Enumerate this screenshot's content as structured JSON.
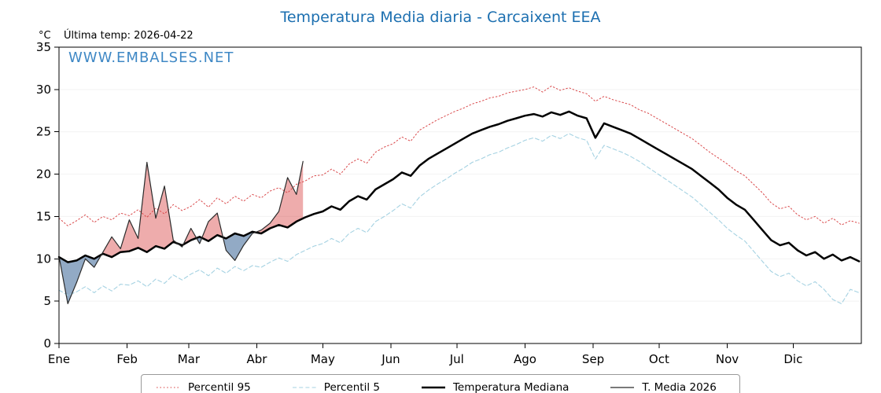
{
  "title": "Temperatura Media diaria - Carcaixent EEA",
  "annotations": {
    "y_unit": "°C",
    "last_temp": "Última temp: 2026-04-22",
    "watermark": "WWW.EMBALSES.NET"
  },
  "colors": {
    "title": "#1c6fb0",
    "watermark": "#3f88c5",
    "p95": "#d9484a",
    "p5": "#a5d2e2",
    "median": "#000000",
    "t2026": "#2b2b2b",
    "fill_above": "rgba(214,57,57,0.42)",
    "fill_below": "rgba(56,100,150,0.55)"
  },
  "chart_data": {
    "type": "line",
    "title": "Temperatura Media diaria - Carcaixent EEA",
    "ylabel": "°C",
    "ylim": [
      0,
      35
    ],
    "yticks": [
      0,
      5,
      10,
      15,
      20,
      25,
      30,
      35
    ],
    "x_domain": [
      1,
      366
    ],
    "month_ticks": {
      "days": [
        1,
        32,
        60,
        91,
        121,
        152,
        182,
        213,
        244,
        274,
        305,
        335
      ],
      "labels": [
        "Ene",
        "Feb",
        "Mar",
        "Abr",
        "May",
        "Jun",
        "Jul",
        "Ago",
        "Sep",
        "Oct",
        "Nov",
        "Dic"
      ]
    },
    "fill": {
      "series": "T. Media 2026",
      "baseline": "Temperatura Mediana",
      "above_color": "rgba(214,57,57,0.42)",
      "below_color": "rgba(56,100,150,0.55)"
    },
    "series": [
      {
        "name": "Percentil 95",
        "color": "#d9484a",
        "width": 1,
        "dash": "dotted",
        "x_start": 1,
        "x_step": 4,
        "values": [
          14.8,
          13.9,
          14.5,
          15.2,
          14.3,
          15.0,
          14.6,
          15.4,
          15.1,
          15.8,
          14.9,
          16.0,
          15.3,
          16.4,
          15.7,
          16.2,
          17.0,
          16.1,
          17.2,
          16.5,
          17.4,
          16.8,
          17.6,
          17.2,
          18.0,
          18.4,
          17.8,
          18.8,
          19.2,
          19.8,
          19.9,
          20.6,
          20.0,
          21.2,
          21.8,
          21.3,
          22.6,
          23.2,
          23.6,
          24.4,
          23.9,
          25.2,
          25.8,
          26.4,
          26.9,
          27.4,
          27.8,
          28.3,
          28.6,
          29.0,
          29.2,
          29.6,
          29.8,
          30.0,
          30.3,
          29.7,
          30.4,
          29.9,
          30.2,
          29.8,
          29.5,
          28.6,
          29.2,
          28.8,
          28.5,
          28.2,
          27.6,
          27.2,
          26.6,
          26.0,
          25.4,
          24.8,
          24.2,
          23.4,
          22.6,
          21.9,
          21.2,
          20.4,
          19.8,
          18.8,
          17.8,
          16.6,
          15.9,
          16.2,
          15.2,
          14.6,
          15.0,
          14.2,
          14.8,
          14.0,
          14.5,
          14.2
        ]
      },
      {
        "name": "Percentil 5",
        "color": "#a5d2e2",
        "width": 1.1,
        "dash": "dashed",
        "x_start": 1,
        "x_step": 4,
        "values": [
          6.3,
          5.7,
          6.1,
          6.7,
          6.0,
          6.8,
          6.2,
          7.0,
          6.9,
          7.4,
          6.7,
          7.6,
          7.1,
          8.1,
          7.5,
          8.2,
          8.7,
          8.0,
          8.9,
          8.3,
          9.1,
          8.6,
          9.2,
          9.0,
          9.6,
          10.1,
          9.7,
          10.5,
          11.0,
          11.5,
          11.8,
          12.4,
          11.9,
          13.0,
          13.6,
          13.1,
          14.4,
          15.0,
          15.7,
          16.5,
          16.0,
          17.3,
          18.1,
          18.8,
          19.4,
          20.1,
          20.7,
          21.4,
          21.8,
          22.3,
          22.6,
          23.1,
          23.5,
          24.0,
          24.3,
          23.9,
          24.6,
          24.2,
          24.8,
          24.3,
          24.0,
          21.8,
          23.4,
          23.0,
          22.6,
          22.1,
          21.5,
          20.8,
          20.1,
          19.4,
          18.7,
          18.0,
          17.3,
          16.4,
          15.5,
          14.6,
          13.6,
          12.8,
          12.1,
          10.9,
          9.7,
          8.5,
          7.9,
          8.3,
          7.4,
          6.8,
          7.3,
          6.4,
          5.2,
          4.7,
          6.4,
          6.0
        ]
      },
      {
        "name": "Temperatura Mediana",
        "color": "#000000",
        "width": 2.5,
        "dash": "solid",
        "x_start": 1,
        "x_step": 4,
        "values": [
          10.2,
          9.6,
          9.8,
          10.4,
          10.0,
          10.6,
          10.2,
          10.8,
          10.9,
          11.3,
          10.8,
          11.5,
          11.2,
          12.0,
          11.6,
          12.2,
          12.6,
          12.1,
          12.8,
          12.4,
          13.0,
          12.7,
          13.2,
          13.0,
          13.6,
          14.0,
          13.7,
          14.4,
          14.9,
          15.3,
          15.6,
          16.2,
          15.8,
          16.8,
          17.4,
          17.0,
          18.2,
          18.8,
          19.4,
          20.2,
          19.8,
          21.0,
          21.8,
          22.4,
          23.0,
          23.6,
          24.2,
          24.8,
          25.2,
          25.6,
          25.9,
          26.3,
          26.6,
          26.9,
          27.1,
          26.8,
          27.3,
          27.0,
          27.4,
          26.9,
          26.6,
          24.3,
          26.0,
          25.6,
          25.2,
          24.8,
          24.2,
          23.6,
          23.0,
          22.4,
          21.8,
          21.2,
          20.6,
          19.8,
          19.0,
          18.2,
          17.2,
          16.4,
          15.8,
          14.6,
          13.4,
          12.2,
          11.6,
          11.9,
          11.0,
          10.4,
          10.8,
          10.0,
          10.5,
          9.8,
          10.2,
          9.7
        ]
      },
      {
        "name": "T. Media 2026",
        "color": "#2b2b2b",
        "width": 1.2,
        "dash": "solid",
        "x": [
          1,
          5,
          9,
          13,
          17,
          21,
          25,
          29,
          33,
          37,
          41,
          45,
          49,
          53,
          57,
          61,
          65,
          69,
          73,
          77,
          81,
          85,
          89,
          93,
          97,
          101,
          105,
          109,
          112
        ],
        "values": [
          10.3,
          4.7,
          7.2,
          10.0,
          9.0,
          10.8,
          12.6,
          11.2,
          14.6,
          12.4,
          21.4,
          14.8,
          18.6,
          12.2,
          11.4,
          13.6,
          11.8,
          14.4,
          15.4,
          11.0,
          9.8,
          11.6,
          13.0,
          13.4,
          14.2,
          15.6,
          19.6,
          17.6,
          21.5
        ]
      }
    ]
  }
}
